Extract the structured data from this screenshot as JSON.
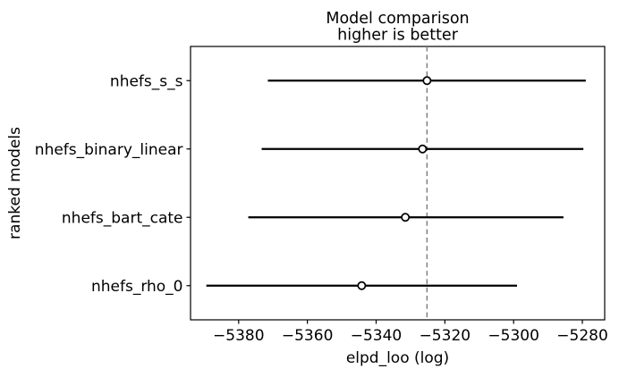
{
  "figure": {
    "title_line1": "Model comparison",
    "title_line2": "higher is better",
    "xlabel": "elpd_loo (log)",
    "ylabel": "ranked models"
  },
  "chart_data": {
    "type": "errorbar",
    "orientation": "horizontal",
    "title": "Model comparison",
    "subtitle": "higher is better",
    "xlabel": "elpd_loo (log)",
    "ylabel": "ranked models",
    "grid": false,
    "legend": "none",
    "categories": [
      "nhefs_s_s",
      "nhefs_binary_linear",
      "nhefs_bart_cate",
      "nhefs_rho_0"
    ],
    "series": [
      {
        "name": "elpd_loo",
        "marker": "open-circle",
        "values": [
          -5325.2,
          -5326.5,
          -5331.5,
          -5344.2
        ],
        "error_lower": [
          -5371.5,
          -5373.3,
          -5377.2,
          -5389.4
        ],
        "error_upper": [
          -5279.0,
          -5279.7,
          -5285.5,
          -5299.0
        ]
      }
    ],
    "reference_line": {
      "x": -5325.2,
      "style": "dashed",
      "color": "#808080"
    },
    "xlim": [
      -5394,
      -5273.5
    ],
    "xticks": [
      -5380,
      -5360,
      -5340,
      -5320,
      -5300,
      -5280
    ],
    "xtick_labels": [
      "−5380",
      "−5360",
      "−5340",
      "−5320",
      "−5300",
      "−5280"
    ],
    "colors": {
      "errorbar": "#000000",
      "marker_edge": "#000000",
      "marker_fill": "#ffffff",
      "frame": "#000000",
      "text": "#000000",
      "background": "#ffffff"
    }
  }
}
